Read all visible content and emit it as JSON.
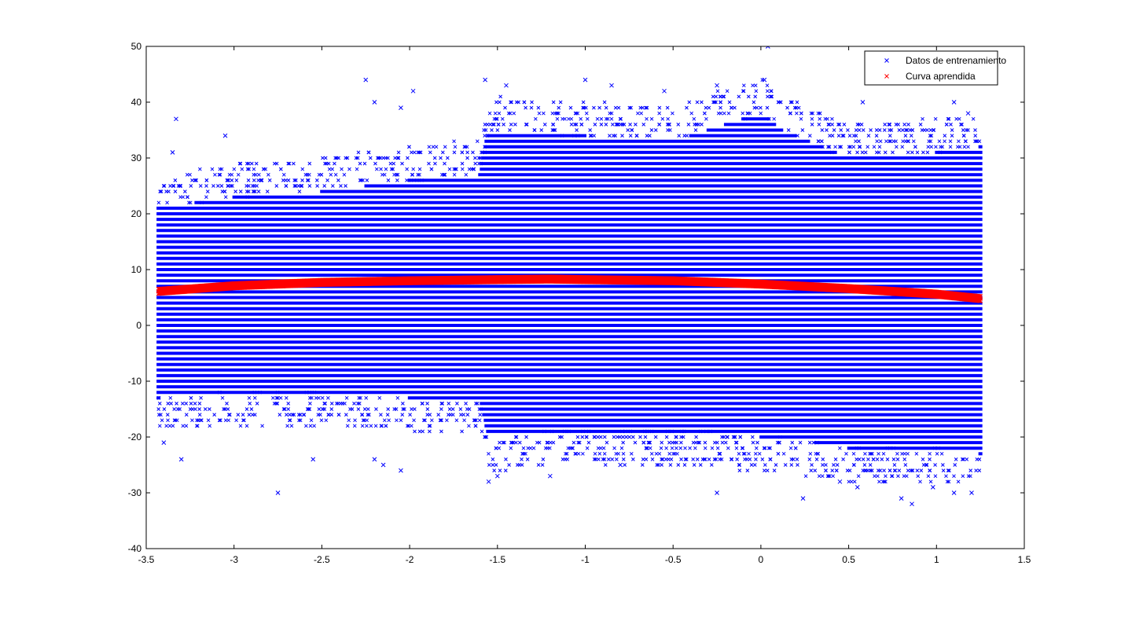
{
  "chart_data": {
    "type": "scatter",
    "title": "",
    "xlabel": "",
    "ylabel": "",
    "xlim": [
      -3.5,
      1.5
    ],
    "ylim": [
      -40,
      50
    ],
    "xticks": [
      -3.5,
      -3,
      -2.5,
      -2,
      -1.5,
      -1,
      -0.5,
      0,
      0.5,
      1,
      1.5
    ],
    "yticks": [
      -40,
      -30,
      -20,
      -10,
      0,
      10,
      20,
      30,
      40,
      50
    ],
    "xtick_labels": [
      "-3.5",
      "-3",
      "-2.5",
      "-2",
      "-1.5",
      "-1",
      "-0.5",
      "0",
      "0.5",
      "1",
      "1.5"
    ],
    "ytick_labels": [
      "-40",
      "-30",
      "-20",
      "-10",
      "0",
      "10",
      "20",
      "30",
      "40",
      "50"
    ],
    "grid": false,
    "legend_position": "top-right",
    "data_x_range": [
      -3.43,
      1.25
    ],
    "data_y_step": 1,
    "series": [
      {
        "name": "Datos de entrenamiento",
        "marker": "x",
        "color": "#0000ff",
        "envelope": {
          "x": [
            -3.43,
            -3.0,
            -2.5,
            -2.0,
            -1.6,
            -1.55,
            -1.0,
            -0.5,
            0.0,
            0.12,
            0.5,
            1.0,
            1.25
          ],
          "y_low": [
            -13,
            -12,
            -12,
            -13,
            -13,
            -20,
            -19,
            -19,
            -20,
            -20,
            -22,
            -22,
            -23
          ],
          "y_high": [
            21,
            23,
            24,
            26,
            27,
            35,
            34,
            33,
            38,
            35,
            30,
            31,
            32
          ]
        },
        "outliers": [
          [
            -3.33,
            37
          ],
          [
            -3.35,
            31
          ],
          [
            -3.05,
            34
          ],
          [
            -2.25,
            44
          ],
          [
            -2.05,
            39
          ],
          [
            -2.2,
            40
          ],
          [
            -1.98,
            42
          ],
          [
            -1.57,
            44
          ],
          [
            -1.45,
            43
          ],
          [
            -1.0,
            44
          ],
          [
            -0.85,
            43
          ],
          [
            -0.55,
            42
          ],
          [
            0.04,
            50
          ],
          [
            0.02,
            44
          ],
          [
            -0.25,
            43
          ],
          [
            0.58,
            40
          ],
          [
            1.1,
            40
          ],
          [
            1.18,
            38
          ],
          [
            -3.4,
            -21
          ],
          [
            -3.3,
            -24
          ],
          [
            -2.75,
            -30
          ],
          [
            -2.55,
            -24
          ],
          [
            -2.2,
            -24
          ],
          [
            -2.15,
            -25
          ],
          [
            -2.05,
            -26
          ],
          [
            -1.55,
            -28
          ],
          [
            -1.5,
            -27
          ],
          [
            -1.2,
            -27
          ],
          [
            -0.8,
            -25
          ],
          [
            -0.25,
            -30
          ],
          [
            0.24,
            -31
          ],
          [
            0.45,
            -28
          ],
          [
            0.55,
            -29
          ],
          [
            0.8,
            -31
          ],
          [
            0.86,
            -32
          ],
          [
            0.98,
            -29
          ],
          [
            1.1,
            -30
          ],
          [
            1.2,
            -30
          ]
        ]
      },
      {
        "name": "Curva aprendida",
        "marker": "x",
        "color": "#ff0000",
        "x": [
          -3.43,
          -3.0,
          -2.5,
          -2.0,
          -1.5,
          -1.2,
          -1.0,
          -0.5,
          0.0,
          0.5,
          1.0,
          1.25
        ],
        "y": [
          6.3,
          7.3,
          7.9,
          8.2,
          8.4,
          8.5,
          8.4,
          8.2,
          7.6,
          6.8,
          5.8,
          5.0
        ]
      }
    ]
  }
}
